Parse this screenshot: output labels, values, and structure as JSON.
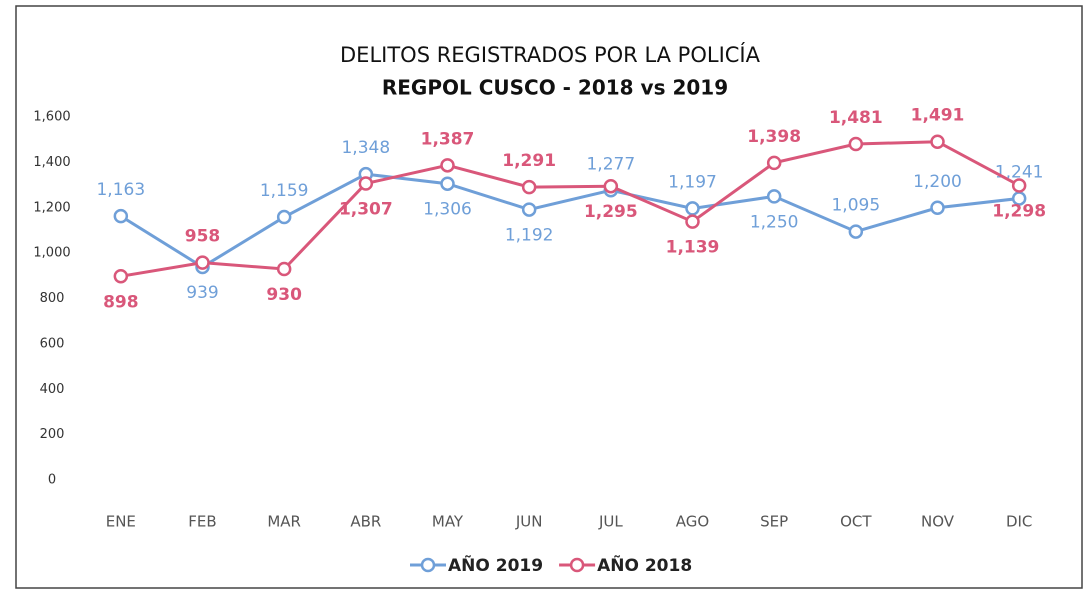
{
  "chart_data": {
    "type": "line",
    "title": "DELITOS REGISTRADOS POR LA POLICÍA",
    "subtitle": "REGPOL CUSCO - 2018 vs 2019",
    "categories": [
      "ENE",
      "FEB",
      "MAR",
      "ABR",
      "MAY",
      "JUN",
      "JUL",
      "AGO",
      "SEP",
      "OCT",
      "NOV",
      "DIC"
    ],
    "series": [
      {
        "name": "AÑO 2019",
        "color": "#6f9fd8",
        "values": [
          1163,
          939,
          1159,
          1348,
          1306,
          1192,
          1277,
          1197,
          1250,
          1095,
          1200,
          1241
        ],
        "value_labels": [
          "1,163",
          "939",
          "1,159",
          "1,348",
          "1,306",
          "1,192",
          "1,277",
          "1,197",
          "1,250",
          "1,095",
          "1,200",
          "1,241"
        ]
      },
      {
        "name": "AÑO 2018",
        "color": "#d9577a",
        "values": [
          898,
          958,
          930,
          1307,
          1387,
          1291,
          1295,
          1139,
          1398,
          1481,
          1491,
          1298
        ],
        "value_labels": [
          "898",
          "958",
          "930",
          "1,307",
          "1,387",
          "1,291",
          "1,295",
          "1,139",
          "1,398",
          "1,481",
          "1,491",
          "1,298"
        ]
      }
    ],
    "ylim": [
      0,
      1600
    ],
    "yticks": [
      0,
      200,
      400,
      600,
      800,
      {
        "value": 1000,
        "label": "1,000"
      },
      {
        "value": 1200,
        "label": "1,200"
      },
      {
        "value": 1400,
        "label": "1,400"
      },
      {
        "value": 1600,
        "label": "1,600"
      }
    ],
    "grid": false,
    "legend": "bottom"
  }
}
